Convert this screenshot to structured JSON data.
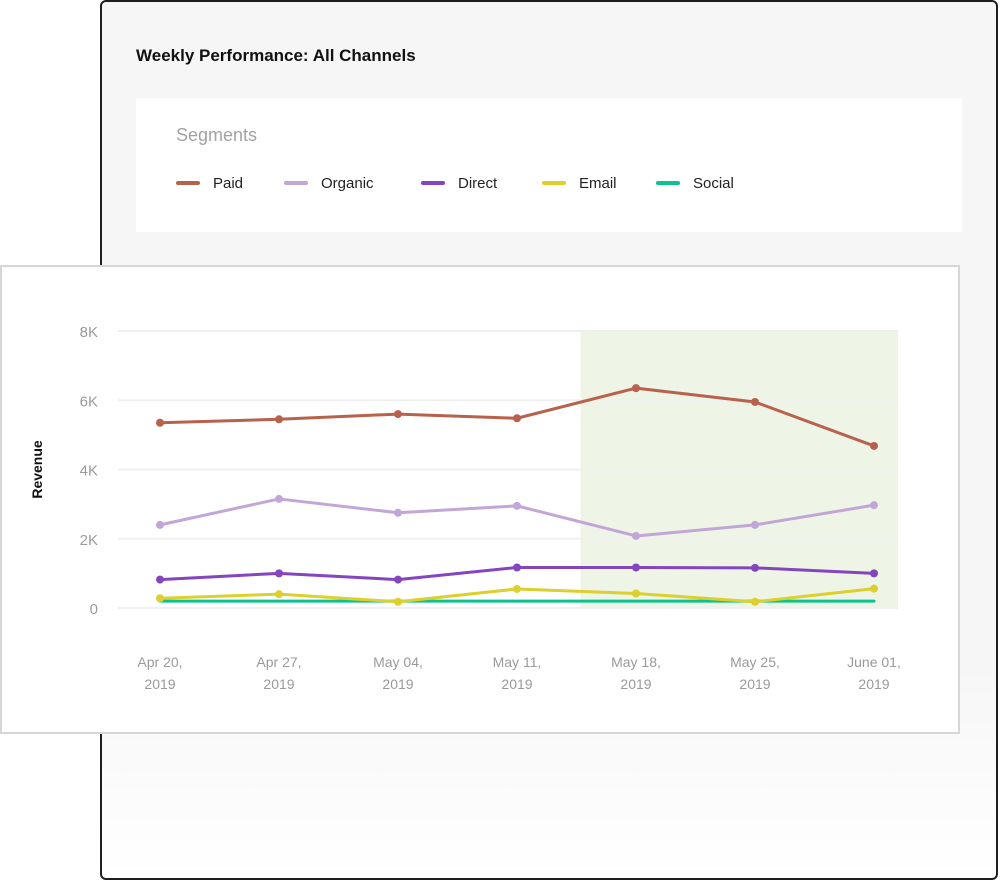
{
  "panel": {
    "title": "Weekly Performance: All Channels",
    "legend_title": "Segments"
  },
  "colors": {
    "Paid": "#b8614d",
    "Organic": "#c3a6d8",
    "Direct": "#8445bf",
    "Email": "#dccf2e",
    "Social": "#0dc28e",
    "highlight": "#eef5e6",
    "grid": "#f0f0f0"
  },
  "chart_data": {
    "type": "line",
    "title": "",
    "xlabel": "",
    "ylabel": "Revenue",
    "ylim": [
      0,
      8000
    ],
    "yticks": [
      0,
      2000,
      4000,
      6000,
      8000
    ],
    "ytick_labels": [
      "0",
      "2K",
      "4K",
      "6K",
      "8K"
    ],
    "categories": [
      "Apr 20, 2019",
      "Apr 27, 2019",
      "May 04, 2019",
      "May 11, 2019",
      "May 18, 2019",
      "May 25, 2019",
      "June 01, 2019"
    ],
    "category_labels": [
      [
        "Apr 20,",
        "2019"
      ],
      [
        "Apr 27,",
        "2019"
      ],
      [
        "May 04,",
        "2019"
      ],
      [
        "May 11,",
        "2019"
      ],
      [
        "May 18,",
        "2019"
      ],
      [
        "May 25,",
        "2019"
      ],
      [
        "June 01,",
        "2019"
      ]
    ],
    "highlight_range": [
      "May 18, 2019",
      "June 01, 2019"
    ],
    "grid": "horizontal",
    "legend_position": "top",
    "series": [
      {
        "name": "Paid",
        "values": [
          5350,
          5450,
          5600,
          5480,
          6350,
          5950,
          4680
        ],
        "markers": true
      },
      {
        "name": "Organic",
        "values": [
          2400,
          3150,
          2750,
          2950,
          2080,
          2400,
          2970
        ],
        "markers": true
      },
      {
        "name": "Direct",
        "values": [
          820,
          1000,
          820,
          1170,
          1170,
          1160,
          1000
        ],
        "markers": true
      },
      {
        "name": "Email",
        "values": [
          280,
          400,
          180,
          550,
          420,
          180,
          560
        ],
        "markers": true
      },
      {
        "name": "Social",
        "values": [
          200,
          200,
          200,
          200,
          200,
          200,
          200
        ],
        "markers": false
      }
    ]
  }
}
